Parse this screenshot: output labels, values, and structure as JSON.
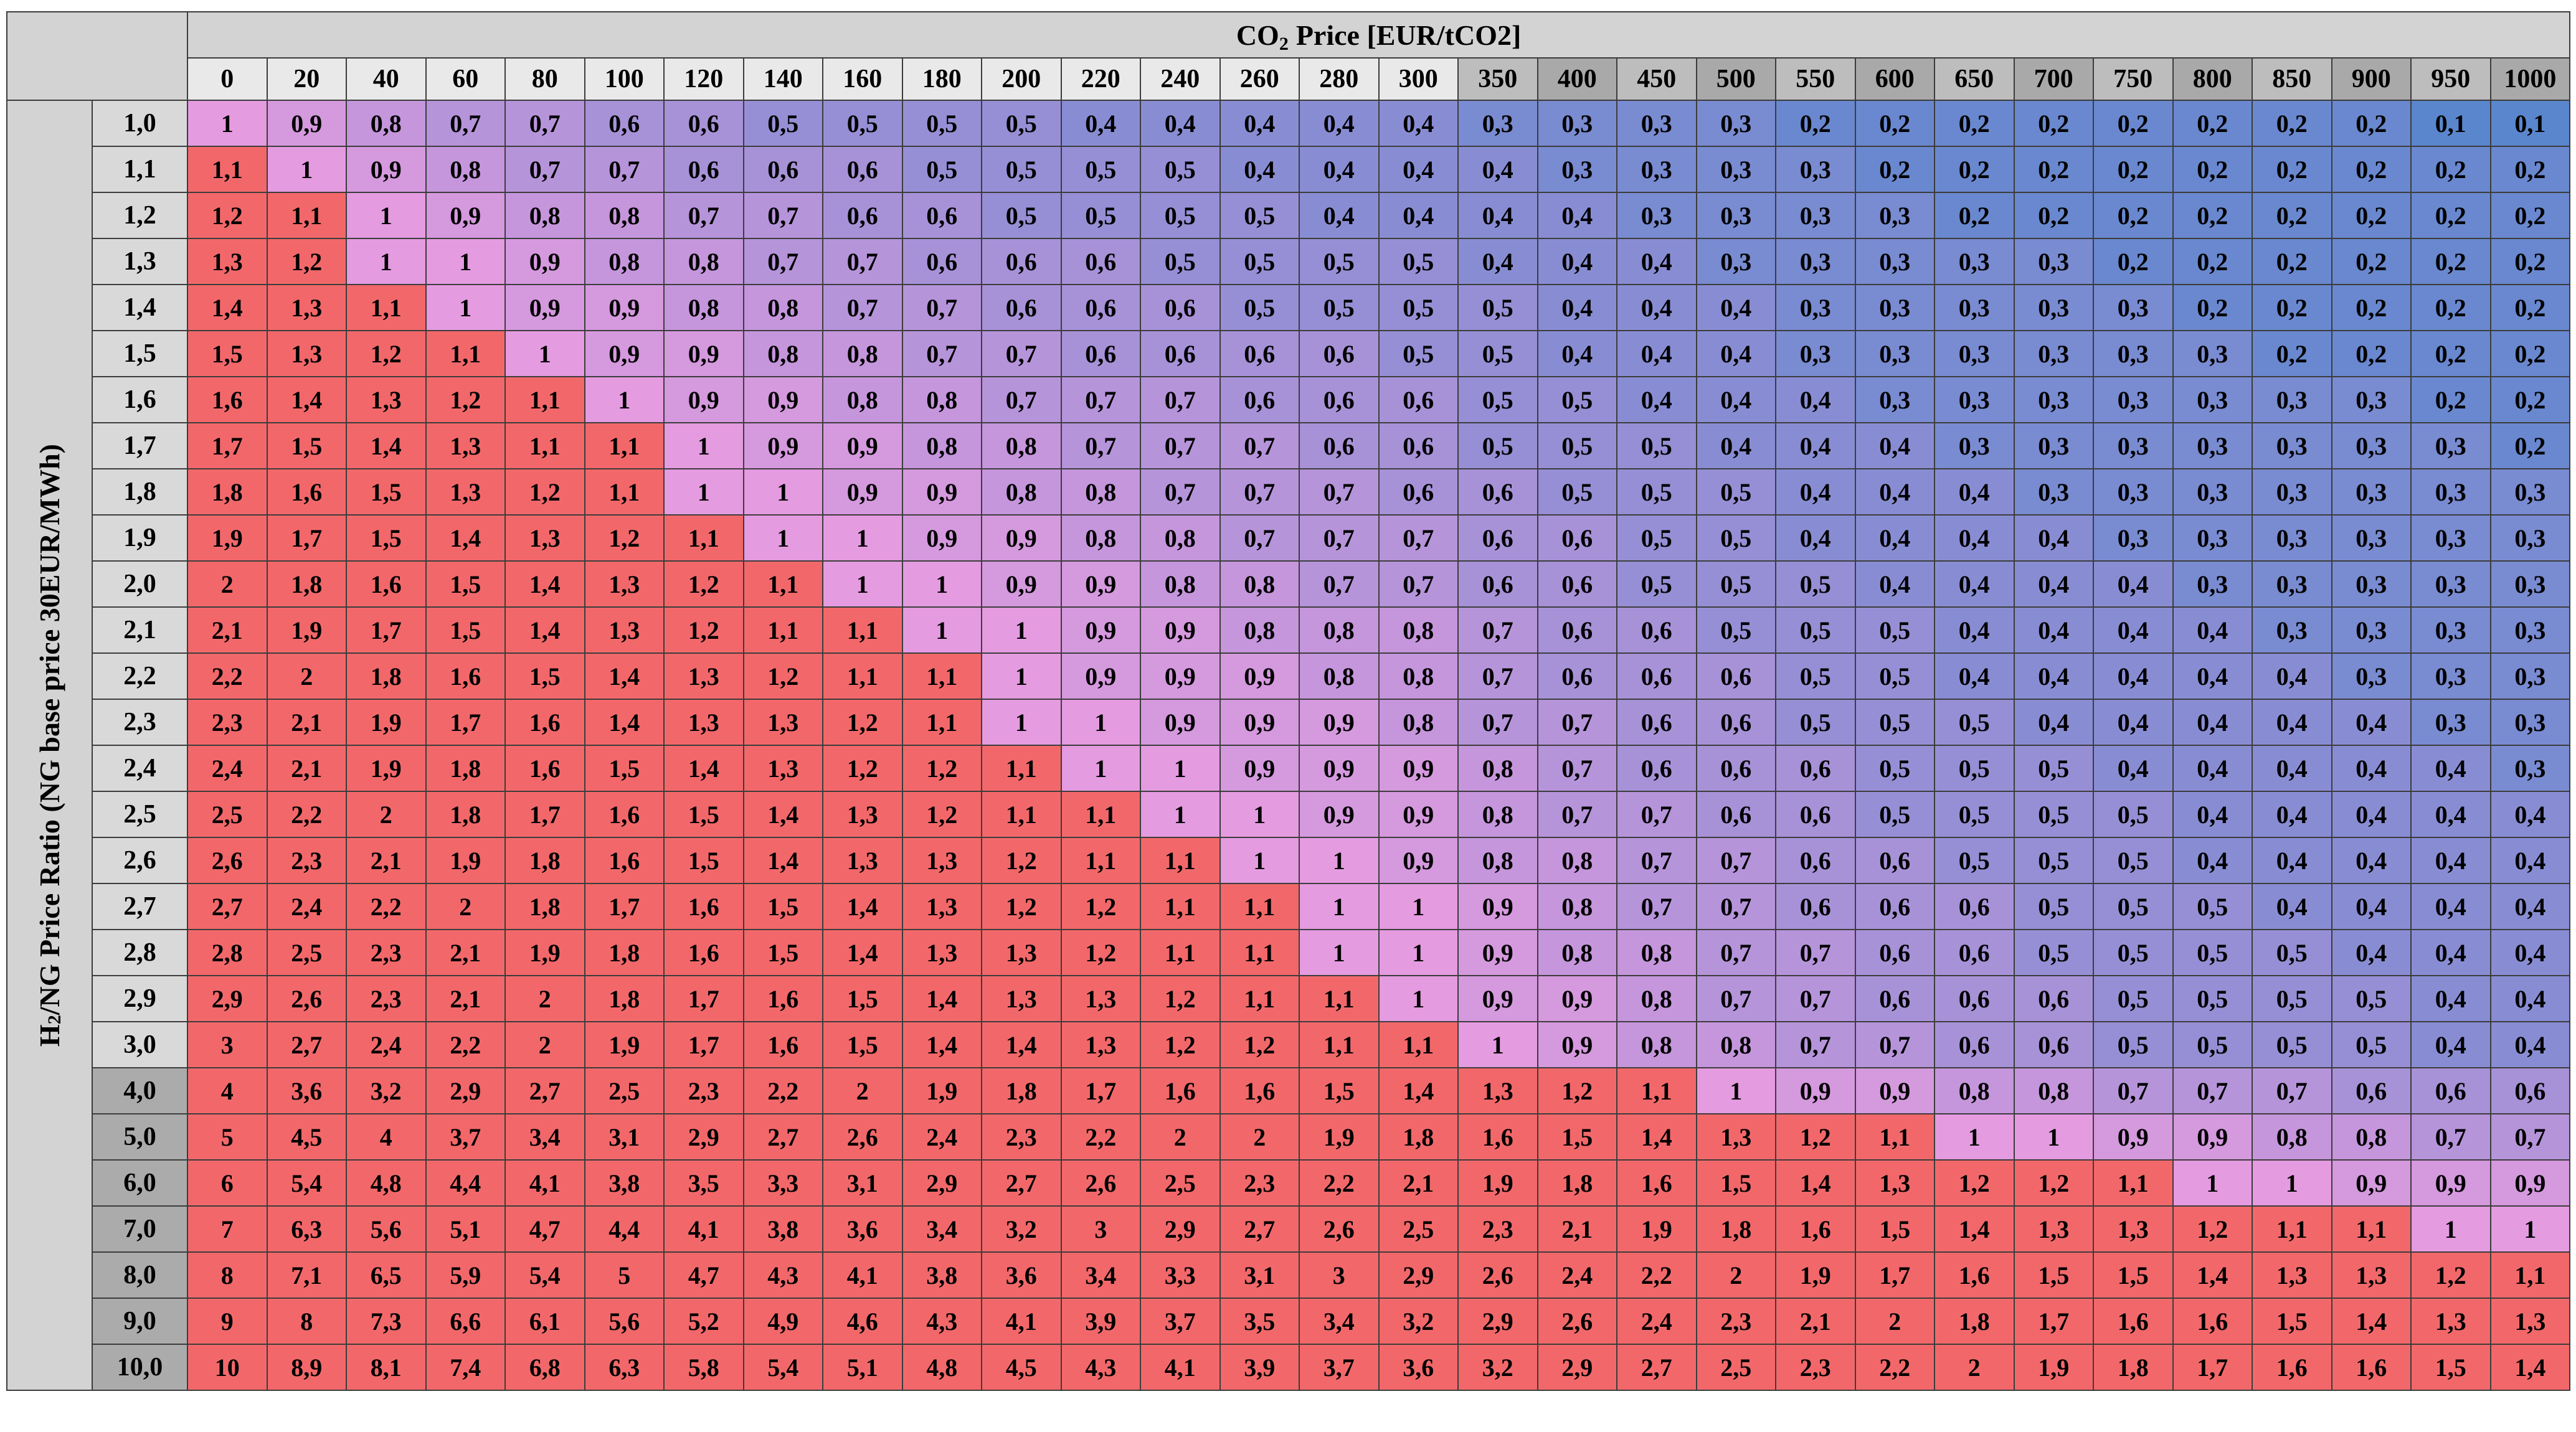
{
  "column_header": {
    "text": "CO",
    "subscript": "2",
    "suffix": "Price [EUR/tCO2]"
  },
  "row_header": {
    "text": "H",
    "subscript": "2",
    "suffix": "/NG Price Ratio (NG base price 30EUR/MWh)"
  },
  "columns": [
    "0",
    "20",
    "40",
    "60",
    "80",
    "100",
    "120",
    "140",
    "160",
    "180",
    "200",
    "220",
    "240",
    "260",
    "280",
    "300",
    "350",
    "400",
    "450",
    "500",
    "550",
    "600",
    "650",
    "700",
    "750",
    "800",
    "850",
    "900",
    "950",
    "1000"
  ],
  "rows": [
    {
      "label": "1,0",
      "values": [
        "1",
        "0,9",
        "0,8",
        "0,7",
        "0,7",
        "0,6",
        "0,6",
        "0,5",
        "0,5",
        "0,5",
        "0,5",
        "0,4",
        "0,4",
        "0,4",
        "0,4",
        "0,4",
        "0,3",
        "0,3",
        "0,3",
        "0,3",
        "0,2",
        "0,2",
        "0,2",
        "0,2",
        "0,2",
        "0,2",
        "0,2",
        "0,2",
        "0,1",
        "0,1"
      ]
    },
    {
      "label": "1,1",
      "values": [
        "1,1",
        "1",
        "0,9",
        "0,8",
        "0,7",
        "0,7",
        "0,6",
        "0,6",
        "0,6",
        "0,5",
        "0,5",
        "0,5",
        "0,5",
        "0,4",
        "0,4",
        "0,4",
        "0,4",
        "0,3",
        "0,3",
        "0,3",
        "0,3",
        "0,2",
        "0,2",
        "0,2",
        "0,2",
        "0,2",
        "0,2",
        "0,2",
        "0,2",
        "0,2"
      ]
    },
    {
      "label": "1,2",
      "values": [
        "1,2",
        "1,1",
        "1",
        "0,9",
        "0,8",
        "0,8",
        "0,7",
        "0,7",
        "0,6",
        "0,6",
        "0,5",
        "0,5",
        "0,5",
        "0,5",
        "0,4",
        "0,4",
        "0,4",
        "0,4",
        "0,3",
        "0,3",
        "0,3",
        "0,3",
        "0,2",
        "0,2",
        "0,2",
        "0,2",
        "0,2",
        "0,2",
        "0,2",
        "0,2"
      ]
    },
    {
      "label": "1,3",
      "values": [
        "1,3",
        "1,2",
        "1",
        "1",
        "0,9",
        "0,8",
        "0,8",
        "0,7",
        "0,7",
        "0,6",
        "0,6",
        "0,6",
        "0,5",
        "0,5",
        "0,5",
        "0,5",
        "0,4",
        "0,4",
        "0,4",
        "0,3",
        "0,3",
        "0,3",
        "0,3",
        "0,3",
        "0,2",
        "0,2",
        "0,2",
        "0,2",
        "0,2",
        "0,2"
      ]
    },
    {
      "label": "1,4",
      "values": [
        "1,4",
        "1,3",
        "1,1",
        "1",
        "0,9",
        "0,9",
        "0,8",
        "0,8",
        "0,7",
        "0,7",
        "0,6",
        "0,6",
        "0,6",
        "0,5",
        "0,5",
        "0,5",
        "0,5",
        "0,4",
        "0,4",
        "0,4",
        "0,3",
        "0,3",
        "0,3",
        "0,3",
        "0,3",
        "0,2",
        "0,2",
        "0,2",
        "0,2",
        "0,2"
      ]
    },
    {
      "label": "1,5",
      "values": [
        "1,5",
        "1,3",
        "1,2",
        "1,1",
        "1",
        "0,9",
        "0,9",
        "0,8",
        "0,8",
        "0,7",
        "0,7",
        "0,6",
        "0,6",
        "0,6",
        "0,6",
        "0,5",
        "0,5",
        "0,4",
        "0,4",
        "0,4",
        "0,3",
        "0,3",
        "0,3",
        "0,3",
        "0,3",
        "0,3",
        "0,2",
        "0,2",
        "0,2",
        "0,2"
      ]
    },
    {
      "label": "1,6",
      "values": [
        "1,6",
        "1,4",
        "1,3",
        "1,2",
        "1,1",
        "1",
        "0,9",
        "0,9",
        "0,8",
        "0,8",
        "0,7",
        "0,7",
        "0,7",
        "0,6",
        "0,6",
        "0,6",
        "0,5",
        "0,5",
        "0,4",
        "0,4",
        "0,4",
        "0,3",
        "0,3",
        "0,3",
        "0,3",
        "0,3",
        "0,3",
        "0,3",
        "0,2",
        "0,2"
      ]
    },
    {
      "label": "1,7",
      "values": [
        "1,7",
        "1,5",
        "1,4",
        "1,3",
        "1,1",
        "1,1",
        "1",
        "0,9",
        "0,9",
        "0,8",
        "0,8",
        "0,7",
        "0,7",
        "0,7",
        "0,6",
        "0,6",
        "0,5",
        "0,5",
        "0,5",
        "0,4",
        "0,4",
        "0,4",
        "0,3",
        "0,3",
        "0,3",
        "0,3",
        "0,3",
        "0,3",
        "0,3",
        "0,2"
      ]
    },
    {
      "label": "1,8",
      "values": [
        "1,8",
        "1,6",
        "1,5",
        "1,3",
        "1,2",
        "1,1",
        "1",
        "1",
        "0,9",
        "0,9",
        "0,8",
        "0,8",
        "0,7",
        "0,7",
        "0,7",
        "0,6",
        "0,6",
        "0,5",
        "0,5",
        "0,5",
        "0,4",
        "0,4",
        "0,4",
        "0,3",
        "0,3",
        "0,3",
        "0,3",
        "0,3",
        "0,3",
        "0,3"
      ]
    },
    {
      "label": "1,9",
      "values": [
        "1,9",
        "1,7",
        "1,5",
        "1,4",
        "1,3",
        "1,2",
        "1,1",
        "1",
        "1",
        "0,9",
        "0,9",
        "0,8",
        "0,8",
        "0,7",
        "0,7",
        "0,7",
        "0,6",
        "0,6",
        "0,5",
        "0,5",
        "0,4",
        "0,4",
        "0,4",
        "0,4",
        "0,3",
        "0,3",
        "0,3",
        "0,3",
        "0,3",
        "0,3"
      ]
    },
    {
      "label": "2,0",
      "values": [
        "2",
        "1,8",
        "1,6",
        "1,5",
        "1,4",
        "1,3",
        "1,2",
        "1,1",
        "1",
        "1",
        "0,9",
        "0,9",
        "0,8",
        "0,8",
        "0,7",
        "0,7",
        "0,6",
        "0,6",
        "0,5",
        "0,5",
        "0,5",
        "0,4",
        "0,4",
        "0,4",
        "0,4",
        "0,3",
        "0,3",
        "0,3",
        "0,3",
        "0,3"
      ]
    },
    {
      "label": "2,1",
      "values": [
        "2,1",
        "1,9",
        "1,7",
        "1,5",
        "1,4",
        "1,3",
        "1,2",
        "1,1",
        "1,1",
        "1",
        "1",
        "0,9",
        "0,9",
        "0,8",
        "0,8",
        "0,8",
        "0,7",
        "0,6",
        "0,6",
        "0,5",
        "0,5",
        "0,5",
        "0,4",
        "0,4",
        "0,4",
        "0,4",
        "0,3",
        "0,3",
        "0,3",
        "0,3"
      ]
    },
    {
      "label": "2,2",
      "values": [
        "2,2",
        "2",
        "1,8",
        "1,6",
        "1,5",
        "1,4",
        "1,3",
        "1,2",
        "1,1",
        "1,1",
        "1",
        "0,9",
        "0,9",
        "0,9",
        "0,8",
        "0,8",
        "0,7",
        "0,6",
        "0,6",
        "0,6",
        "0,5",
        "0,5",
        "0,4",
        "0,4",
        "0,4",
        "0,4",
        "0,4",
        "0,3",
        "0,3",
        "0,3"
      ]
    },
    {
      "label": "2,3",
      "values": [
        "2,3",
        "2,1",
        "1,9",
        "1,7",
        "1,6",
        "1,4",
        "1,3",
        "1,3",
        "1,2",
        "1,1",
        "1",
        "1",
        "0,9",
        "0,9",
        "0,9",
        "0,8",
        "0,7",
        "0,7",
        "0,6",
        "0,6",
        "0,5",
        "0,5",
        "0,5",
        "0,4",
        "0,4",
        "0,4",
        "0,4",
        "0,4",
        "0,3",
        "0,3"
      ]
    },
    {
      "label": "2,4",
      "values": [
        "2,4",
        "2,1",
        "1,9",
        "1,8",
        "1,6",
        "1,5",
        "1,4",
        "1,3",
        "1,2",
        "1,2",
        "1,1",
        "1",
        "1",
        "0,9",
        "0,9",
        "0,9",
        "0,8",
        "0,7",
        "0,6",
        "0,6",
        "0,6",
        "0,5",
        "0,5",
        "0,5",
        "0,4",
        "0,4",
        "0,4",
        "0,4",
        "0,4",
        "0,3"
      ]
    },
    {
      "label": "2,5",
      "values": [
        "2,5",
        "2,2",
        "2",
        "1,8",
        "1,7",
        "1,6",
        "1,5",
        "1,4",
        "1,3",
        "1,2",
        "1,1",
        "1,1",
        "1",
        "1",
        "0,9",
        "0,9",
        "0,8",
        "0,7",
        "0,7",
        "0,6",
        "0,6",
        "0,5",
        "0,5",
        "0,5",
        "0,5",
        "0,4",
        "0,4",
        "0,4",
        "0,4",
        "0,4"
      ]
    },
    {
      "label": "2,6",
      "values": [
        "2,6",
        "2,3",
        "2,1",
        "1,9",
        "1,8",
        "1,6",
        "1,5",
        "1,4",
        "1,3",
        "1,3",
        "1,2",
        "1,1",
        "1,1",
        "1",
        "1",
        "0,9",
        "0,8",
        "0,8",
        "0,7",
        "0,7",
        "0,6",
        "0,6",
        "0,5",
        "0,5",
        "0,5",
        "0,4",
        "0,4",
        "0,4",
        "0,4",
        "0,4"
      ]
    },
    {
      "label": "2,7",
      "values": [
        "2,7",
        "2,4",
        "2,2",
        "2",
        "1,8",
        "1,7",
        "1,6",
        "1,5",
        "1,4",
        "1,3",
        "1,2",
        "1,2",
        "1,1",
        "1,1",
        "1",
        "1",
        "0,9",
        "0,8",
        "0,7",
        "0,7",
        "0,6",
        "0,6",
        "0,6",
        "0,5",
        "0,5",
        "0,5",
        "0,4",
        "0,4",
        "0,4",
        "0,4"
      ]
    },
    {
      "label": "2,8",
      "values": [
        "2,8",
        "2,5",
        "2,3",
        "2,1",
        "1,9",
        "1,8",
        "1,6",
        "1,5",
        "1,4",
        "1,3",
        "1,3",
        "1,2",
        "1,1",
        "1,1",
        "1",
        "1",
        "0,9",
        "0,8",
        "0,8",
        "0,7",
        "0,7",
        "0,6",
        "0,6",
        "0,5",
        "0,5",
        "0,5",
        "0,5",
        "0,4",
        "0,4",
        "0,4"
      ]
    },
    {
      "label": "2,9",
      "values": [
        "2,9",
        "2,6",
        "2,3",
        "2,1",
        "2",
        "1,8",
        "1,7",
        "1,6",
        "1,5",
        "1,4",
        "1,3",
        "1,3",
        "1,2",
        "1,1",
        "1,1",
        "1",
        "0,9",
        "0,9",
        "0,8",
        "0,7",
        "0,7",
        "0,6",
        "0,6",
        "0,6",
        "0,5",
        "0,5",
        "0,5",
        "0,5",
        "0,4",
        "0,4"
      ]
    },
    {
      "label": "3,0",
      "values": [
        "3",
        "2,7",
        "2,4",
        "2,2",
        "2",
        "1,9",
        "1,7",
        "1,6",
        "1,5",
        "1,4",
        "1,4",
        "1,3",
        "1,2",
        "1,2",
        "1,1",
        "1,1",
        "1",
        "0,9",
        "0,8",
        "0,8",
        "0,7",
        "0,7",
        "0,6",
        "0,6",
        "0,5",
        "0,5",
        "0,5",
        "0,5",
        "0,4",
        "0,4"
      ]
    },
    {
      "label": "4,0",
      "values": [
        "4",
        "3,6",
        "3,2",
        "2,9",
        "2,7",
        "2,5",
        "2,3",
        "2,2",
        "2",
        "1,9",
        "1,8",
        "1,7",
        "1,6",
        "1,6",
        "1,5",
        "1,4",
        "1,3",
        "1,2",
        "1,1",
        "1",
        "0,9",
        "0,9",
        "0,8",
        "0,8",
        "0,7",
        "0,7",
        "0,7",
        "0,6",
        "0,6",
        "0,6"
      ]
    },
    {
      "label": "5,0",
      "values": [
        "5",
        "4,5",
        "4",
        "3,7",
        "3,4",
        "3,1",
        "2,9",
        "2,7",
        "2,6",
        "2,4",
        "2,3",
        "2,2",
        "2",
        "2",
        "1,9",
        "1,8",
        "1,6",
        "1,5",
        "1,4",
        "1,3",
        "1,2",
        "1,1",
        "1",
        "1",
        "0,9",
        "0,9",
        "0,8",
        "0,8",
        "0,7",
        "0,7"
      ]
    },
    {
      "label": "6,0",
      "values": [
        "6",
        "5,4",
        "4,8",
        "4,4",
        "4,1",
        "3,8",
        "3,5",
        "3,3",
        "3,1",
        "2,9",
        "2,7",
        "2,6",
        "2,5",
        "2,3",
        "2,2",
        "2,1",
        "1,9",
        "1,8",
        "1,6",
        "1,5",
        "1,4",
        "1,3",
        "1,2",
        "1,2",
        "1,1",
        "1",
        "1",
        "0,9",
        "0,9",
        "0,9"
      ]
    },
    {
      "label": "7,0",
      "values": [
        "7",
        "6,3",
        "5,6",
        "5,1",
        "4,7",
        "4,4",
        "4,1",
        "3,8",
        "3,6",
        "3,4",
        "3,2",
        "3",
        "2,9",
        "2,7",
        "2,6",
        "2,5",
        "2,3",
        "2,1",
        "1,9",
        "1,8",
        "1,6",
        "1,5",
        "1,4",
        "1,3",
        "1,3",
        "1,2",
        "1,1",
        "1,1",
        "1",
        "1"
      ]
    },
    {
      "label": "8,0",
      "values": [
        "8",
        "7,1",
        "6,5",
        "5,9",
        "5,4",
        "5",
        "4,7",
        "4,3",
        "4,1",
        "3,8",
        "3,6",
        "3,4",
        "3,3",
        "3,1",
        "3",
        "2,9",
        "2,6",
        "2,4",
        "2,2",
        "2",
        "1,9",
        "1,7",
        "1,6",
        "1,5",
        "1,5",
        "1,4",
        "1,3",
        "1,3",
        "1,2",
        "1,1"
      ]
    },
    {
      "label": "9,0",
      "values": [
        "9",
        "8",
        "7,3",
        "6,6",
        "6,1",
        "5,6",
        "5,2",
        "4,9",
        "4,6",
        "4,3",
        "4,1",
        "3,9",
        "3,7",
        "3,5",
        "3,4",
        "3,2",
        "2,9",
        "2,6",
        "2,4",
        "2,3",
        "2,1",
        "2",
        "1,8",
        "1,7",
        "1,6",
        "1,6",
        "1,5",
        "1,4",
        "1,3",
        "1,3"
      ]
    },
    {
      "label": "10,0",
      "values": [
        "10",
        "8,9",
        "8,1",
        "7,4",
        "6,8",
        "6,3",
        "5,8",
        "5,4",
        "5,1",
        "4,8",
        "4,5",
        "4,3",
        "4,1",
        "3,9",
        "3,7",
        "3,6",
        "3,2",
        "2,9",
        "2,7",
        "2,5",
        "2,3",
        "2,2",
        "2",
        "1,9",
        "1,8",
        "1,7",
        "1,6",
        "1,6",
        "1,5",
        "1,4"
      ]
    }
  ]
}
